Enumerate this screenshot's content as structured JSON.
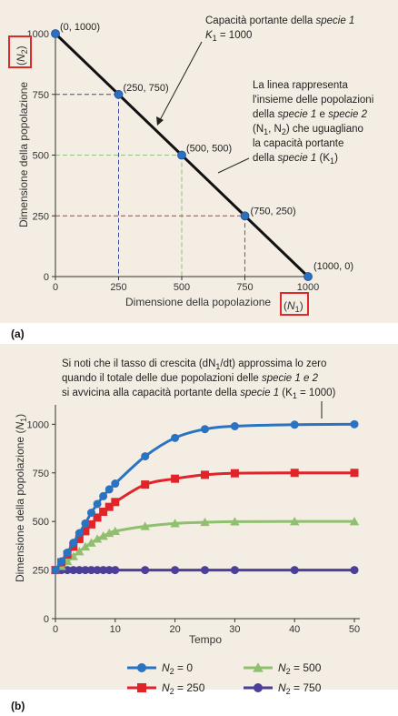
{
  "chart_data": [
    {
      "panel": "(a)",
      "type": "line",
      "xlabel_text": "Dimensione della popolazione",
      "xlabel_var": "N",
      "xlabel_sub": "1",
      "ylabel_text": "Dimensione della popolazione",
      "ylabel_var": "N",
      "ylabel_sub": "2",
      "xlim": [
        0,
        1000
      ],
      "ylim": [
        0,
        1000
      ],
      "xticks": [
        0,
        250,
        500,
        750,
        1000
      ],
      "yticks": [
        0,
        250,
        500,
        750,
        1000
      ],
      "line": {
        "x": [
          0,
          1000
        ],
        "y": [
          1000,
          0
        ],
        "color": "#111111"
      },
      "points": [
        {
          "x": 0,
          "y": 1000,
          "label": "(0, 1000)"
        },
        {
          "x": 250,
          "y": 750,
          "label": "(250, 750)"
        },
        {
          "x": 500,
          "y": 500,
          "label": "(500, 500)"
        },
        {
          "x": 750,
          "y": 250,
          "label": "(750, 250)"
        },
        {
          "x": 1000,
          "y": 0,
          "label": "(1000, 0)"
        }
      ],
      "guides": [
        {
          "x": 250,
          "y": 750,
          "color": "#3b4a9c"
        },
        {
          "x": 500,
          "y": 500,
          "color": "#8fc27a"
        },
        {
          "x": 750,
          "y": 250,
          "color": "#e02a2a"
        }
      ],
      "annotation_top": {
        "line1_pre": "Capacità portante della ",
        "line1_it": "specie 1",
        "line2": "K",
        "line2_sub": "1",
        "line2_post": " = 1000"
      },
      "annotation_mid": {
        "l1": "La linea rappresenta",
        "l2": "l'insieme delle popolazioni",
        "l3_pre": "della ",
        "l3_it1": "specie 1",
        "l3_mid": " e ",
        "l3_it2": "specie 2",
        "l4_a": "(N",
        "l4_a_sub": "1",
        "l4_b": ", N",
        "l4_b_sub": "2",
        "l4_post": ") che uguagliano",
        "l5": "la capacità portante",
        "l6_pre": "della ",
        "l6_it": "specie 1",
        "l6_post_a": "  (K",
        "l6_post_sub": "1",
        "l6_post_b": ")"
      }
    },
    {
      "panel": "(b)",
      "type": "line",
      "xlabel": "Tempo",
      "ylabel_text": "Dimensione della popolazione",
      "ylabel_var": "N",
      "ylabel_sub": "1",
      "xlim": [
        0,
        50
      ],
      "ylim": [
        0,
        1100
      ],
      "xticks": [
        0,
        10,
        20,
        30,
        40,
        50
      ],
      "yticks": [
        0,
        250,
        500,
        750,
        1000
      ],
      "note": {
        "l1_pre": "Si noti che il tasso di crescita (dN",
        "l1_sub": "1",
        "l1_post": "/dt) approssima lo zero",
        "l2_pre": "quando il totale delle due popolazioni delle ",
        "l2_it": "specie 1 e 2",
        "l3_pre": "si avvicina alla capacità portante della ",
        "l3_it": "specie 1",
        "l3_a": " (K",
        "l3_sub": "1",
        "l3_b": " = 1000)"
      },
      "series": [
        {
          "name": "N",
          "name_sub": "2",
          "name_val": " = 0",
          "color": "#2a72c2",
          "marker": "circle",
          "x": [
            0,
            1,
            2,
            3,
            4,
            5,
            6,
            7,
            8,
            9,
            10,
            15,
            20,
            25,
            30,
            40,
            50
          ],
          "y": [
            250,
            295,
            340,
            390,
            440,
            490,
            545,
            590,
            630,
            665,
            695,
            835,
            930,
            975,
            990,
            998,
            1000
          ]
        },
        {
          "name": "N",
          "name_sub": "2",
          "name_val": " = 250",
          "color": "#e0242a",
          "marker": "square",
          "x": [
            0,
            1,
            2,
            3,
            4,
            5,
            6,
            7,
            8,
            9,
            10,
            15,
            20,
            25,
            30,
            40,
            50
          ],
          "y": [
            250,
            290,
            330,
            370,
            410,
            450,
            485,
            520,
            550,
            575,
            600,
            690,
            720,
            740,
            748,
            750,
            750
          ]
        },
        {
          "name": "N",
          "name_sub": "2",
          "name_val": " = 500",
          "color": "#8fbf6f",
          "marker": "triangle",
          "x": [
            0,
            1,
            2,
            3,
            4,
            5,
            6,
            7,
            8,
            9,
            10,
            15,
            20,
            25,
            30,
            40,
            50
          ],
          "y": [
            250,
            270,
            295,
            320,
            345,
            370,
            390,
            410,
            425,
            440,
            450,
            475,
            490,
            496,
            499,
            500,
            500
          ]
        },
        {
          "name": "N",
          "name_sub": "2",
          "name_val": " = 750",
          "color": "#4b3f99",
          "marker": "circle",
          "x": [
            0,
            1,
            2,
            3,
            4,
            5,
            6,
            7,
            8,
            9,
            10,
            15,
            20,
            25,
            30,
            40,
            50
          ],
          "y": [
            250,
            250,
            250,
            250,
            250,
            250,
            250,
            250,
            250,
            250,
            250,
            250,
            250,
            250,
            250,
            250,
            250
          ]
        }
      ]
    }
  ]
}
